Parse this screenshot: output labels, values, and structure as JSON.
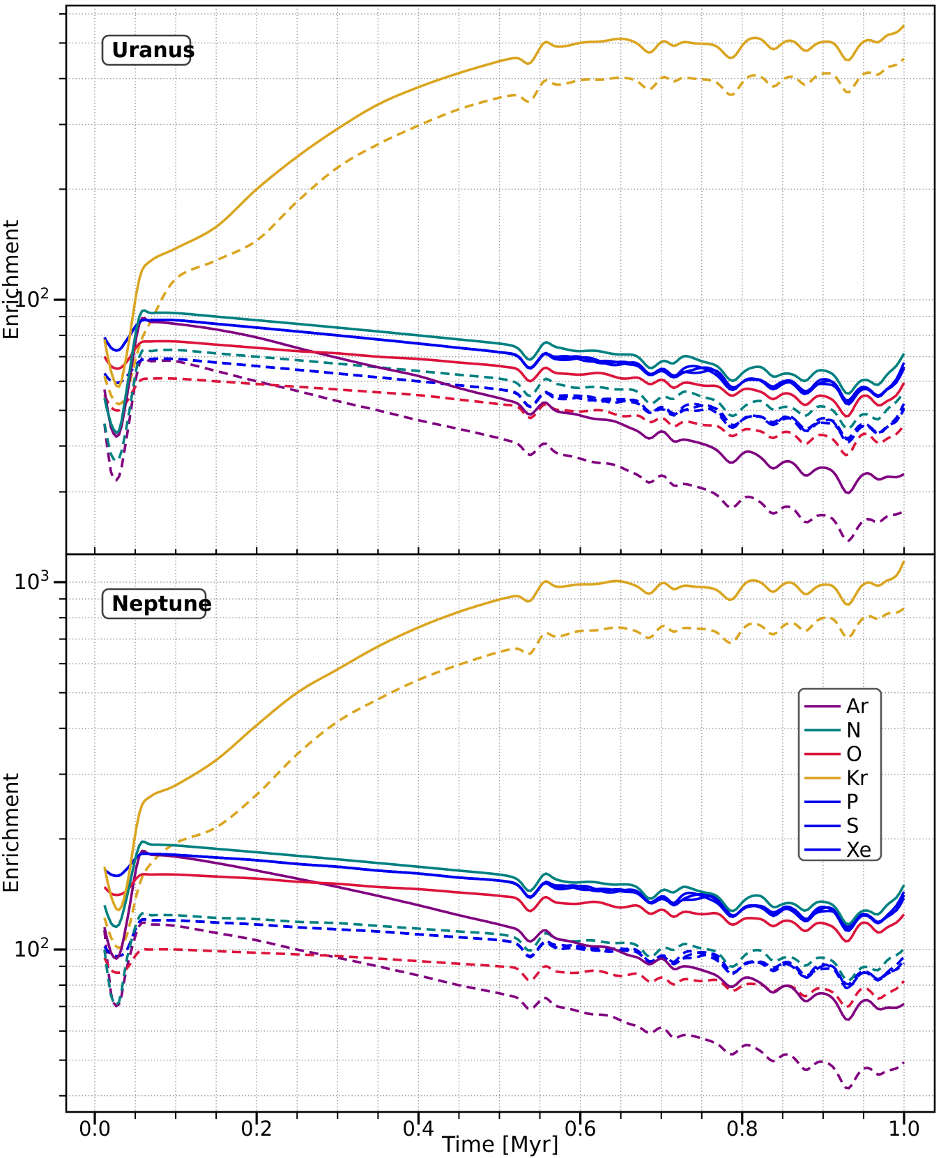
{
  "figure": {
    "background": "#ffffff",
    "grid_color": "#9a9a9a",
    "frame_color": "#000000",
    "x_axis": {
      "label": "Time [Myr]",
      "ticks": [
        {
          "value": 0.0,
          "label": "0.0"
        },
        {
          "value": 0.2,
          "label": "0.2"
        },
        {
          "value": 0.4,
          "label": "0.4"
        },
        {
          "value": 0.6,
          "label": "0.6"
        },
        {
          "value": 0.8,
          "label": "0.8"
        },
        {
          "value": 1.0,
          "label": "1.0"
        }
      ],
      "minor_step": 0.05
    },
    "panels": [
      {
        "id": "uranus",
        "label": "Uranus",
        "ylabel": "Enrichment",
        "yscale": "log",
        "ylim": [
          20,
          632
        ],
        "major_ticks": [
          {
            "value": 100,
            "base": "10",
            "exp": "2"
          }
        ]
      },
      {
        "id": "neptune",
        "label": "Neptune",
        "ylabel": "Enrichment",
        "yscale": "log",
        "ylim": [
          36,
          1191
        ],
        "major_ticks": [
          {
            "value": 1000,
            "base": "10",
            "exp": "3"
          },
          {
            "value": 100,
            "base": "10",
            "exp": "2"
          }
        ]
      }
    ],
    "legend": {
      "entries": [
        {
          "label": "Ar",
          "color": "#800080"
        },
        {
          "label": "N",
          "color": "#008080"
        },
        {
          "label": "O",
          "color": "#DC143C"
        },
        {
          "label": "Kr",
          "color": "#DAA520"
        },
        {
          "label": "P",
          "color": "#0000EE"
        },
        {
          "label": "S",
          "color": "#0000EE"
        },
        {
          "label": "Xe",
          "color": "#0000EE"
        }
      ]
    }
  },
  "chart_data": [
    {
      "type": "line",
      "title": "Uranus",
      "xlabel": "Time [Myr]",
      "ylabel": "Enrichment",
      "yscale": "log",
      "ylim": [
        20,
        632
      ],
      "xlim": [
        0.0,
        1.0
      ],
      "grid": true,
      "legend_position": "lower-panel-right",
      "x": [
        0.012,
        0.02,
        0.03,
        0.04,
        0.055,
        0.07,
        0.1,
        0.15,
        0.2,
        0.25,
        0.3,
        0.35,
        0.4,
        0.45,
        0.5,
        0.55,
        0.6,
        0.65,
        0.7,
        0.75,
        0.8,
        0.85,
        0.9,
        0.95,
        0.985,
        1.0
      ],
      "series": [
        {
          "name": "Ar",
          "color": "#800080",
          "style": "solid",
          "values": [
            57,
            45,
            43,
            55,
            86,
            87,
            86,
            83,
            79,
            74,
            69.5,
            65.5,
            62,
            57.5,
            54,
            51,
            48.5,
            46,
            43.5,
            41,
            38.5,
            36.5,
            35,
            33.5,
            33,
            34
          ]
        },
        {
          "name": "Ar",
          "color": "#800080",
          "style": "dashed",
          "values": [
            46,
            34,
            33,
            43,
            67,
            68,
            68,
            64,
            60,
            56.5,
            53,
            50,
            47,
            44.5,
            42,
            39.5,
            37,
            35,
            33,
            31,
            29,
            27.5,
            26,
            25,
            26,
            27
          ]
        },
        {
          "name": "N",
          "color": "#008080",
          "style": "solid",
          "values": [
            54,
            46,
            44,
            58,
            90,
            92,
            92,
            90,
            88,
            86,
            84,
            82,
            80,
            78,
            76,
            73.5,
            73,
            71,
            70,
            68,
            66,
            64,
            64,
            62,
            63,
            70
          ]
        },
        {
          "name": "N",
          "color": "#008080",
          "style": "dashed",
          "values": [
            46,
            38,
            37,
            46,
            70,
            72.5,
            73,
            71.5,
            70,
            68.5,
            67,
            65.5,
            64,
            62.5,
            61,
            58.5,
            58,
            57,
            56,
            54.5,
            53,
            52,
            51,
            50,
            50.5,
            55
          ]
        },
        {
          "name": "O",
          "color": "#DC143C",
          "style": "solid",
          "values": [
            70,
            66,
            65,
            68,
            76,
            77,
            77,
            75.5,
            74,
            72.5,
            71.5,
            70,
            69,
            67.5,
            66,
            63.5,
            63,
            62,
            61,
            59.5,
            58,
            56,
            55,
            54,
            54.5,
            60
          ]
        },
        {
          "name": "O",
          "color": "#DC143C",
          "style": "dashed",
          "values": [
            55,
            51,
            50,
            53,
            60,
            61,
            61,
            60,
            59,
            58,
            57,
            56,
            55,
            53.5,
            52,
            50.5,
            50,
            49,
            48,
            46.5,
            45,
            44,
            43,
            42.5,
            43,
            46
          ]
        },
        {
          "name": "Kr",
          "color": "#DAA520",
          "style": "solid",
          "values": [
            78,
            64,
            58,
            72,
            114,
            128,
            138,
            158,
            200,
            245,
            292,
            340,
            379,
            414,
            446,
            477,
            500,
            510,
            505,
            500,
            505,
            510,
            505,
            515,
            520,
            560
          ]
        },
        {
          "name": "Kr",
          "color": "#DAA520",
          "style": "dashed",
          "values": [
            62,
            55,
            52,
            56,
            75,
            88,
            114,
            128,
            145,
            185,
            229,
            265,
            298,
            330,
            355,
            375,
            396,
            400,
            403,
            400,
            400,
            405,
            414,
            420,
            425,
            455
          ]
        },
        {
          "name": "P",
          "color": "#0000EE",
          "style": "solid",
          "values": [
            79,
            74,
            73,
            78,
            87,
            88,
            88,
            86,
            84,
            82,
            80,
            78,
            76,
            74,
            72,
            69.5,
            69,
            67,
            66,
            64,
            62,
            60,
            60,
            58,
            59,
            66
          ]
        },
        {
          "name": "P",
          "color": "#0000EE",
          "style": "dashed",
          "values": [
            63,
            60,
            59.5,
            62,
            68,
            69,
            69,
            67.5,
            66,
            64.5,
            63,
            61.5,
            60,
            58.5,
            57,
            54.5,
            54,
            53,
            52,
            50.5,
            49,
            48,
            47,
            46,
            46.5,
            51
          ]
        },
        {
          "name": "S",
          "color": "#0000EE",
          "style": "solid",
          "values_same_as": "P"
        },
        {
          "name": "S",
          "color": "#0000EE",
          "style": "dashed",
          "values_same_as": "P"
        },
        {
          "name": "Xe",
          "color": "#0000EE",
          "style": "solid",
          "values_same_as": "P"
        },
        {
          "name": "Xe",
          "color": "#0000EE",
          "style": "dashed",
          "values_same_as": "P"
        }
      ]
    },
    {
      "type": "line",
      "title": "Neptune",
      "xlabel": "Time [Myr]",
      "ylabel": "Enrichment",
      "yscale": "log",
      "ylim": [
        36,
        1191
      ],
      "xlim": [
        0.0,
        1.0
      ],
      "grid": true,
      "x": [
        0.012,
        0.02,
        0.03,
        0.04,
        0.055,
        0.07,
        0.1,
        0.15,
        0.2,
        0.25,
        0.3,
        0.35,
        0.4,
        0.45,
        0.5,
        0.55,
        0.6,
        0.65,
        0.7,
        0.75,
        0.8,
        0.85,
        0.9,
        0.95,
        0.985,
        1.0
      ],
      "series": [
        {
          "name": "Ar",
          "color": "#800080",
          "style": "solid",
          "values": [
            115,
            98,
            96,
            120,
            180,
            181,
            179,
            172,
            164,
            156,
            148,
            140,
            132,
            124,
            117,
            110,
            104,
            99,
            94,
            89,
            84,
            80,
            76,
            72,
            70,
            72
          ]
        },
        {
          "name": "Ar",
          "color": "#800080",
          "style": "dashed",
          "values": [
            113,
            76,
            71,
            90,
            116,
            117,
            116,
            111,
            106,
            100,
            95,
            90,
            85,
            80,
            76,
            72,
            68,
            64.5,
            61,
            58,
            55,
            52,
            49.5,
            47,
            47.5,
            50
          ]
        },
        {
          "name": "N",
          "color": "#008080",
          "style": "solid",
          "values": [
            132,
            118,
            117,
            140,
            192,
            193,
            192,
            188,
            184,
            180,
            176,
            172,
            168,
            164,
            160,
            154,
            153,
            150,
            148,
            144,
            140,
            136,
            135,
            131,
            132,
            148
          ]
        },
        {
          "name": "N",
          "color": "#008080",
          "style": "dashed",
          "values": [
            100,
            75,
            72,
            95,
            123,
            124,
            124,
            122,
            121,
            119,
            118,
            116,
            114,
            112,
            110,
            106,
            106,
            104,
            103,
            101,
            99,
            97,
            95,
            92,
            93,
            99
          ]
        },
        {
          "name": "O",
          "color": "#DC143C",
          "style": "solid",
          "values": [
            148,
            142,
            141,
            145,
            159,
            160,
            160,
            158,
            156,
            153,
            151,
            148,
            146,
            143,
            140,
            135,
            134,
            132,
            130,
            127,
            124,
            121,
            119,
            117,
            118,
            126
          ]
        },
        {
          "name": "O",
          "color": "#DC143C",
          "style": "dashed",
          "values": [
            95,
            88,
            86.5,
            89,
            99,
            100,
            100,
            99,
            98,
            97,
            96,
            94.5,
            93,
            91.5,
            90,
            87.5,
            87,
            86,
            85,
            83.5,
            82,
            80.5,
            79,
            77.5,
            78,
            83
          ]
        },
        {
          "name": "Kr",
          "color": "#DAA520",
          "style": "solid",
          "values": [
            168,
            140,
            128,
            150,
            235,
            262,
            280,
            328,
            408,
            500,
            579,
            668,
            753,
            830,
            897,
            958,
            986,
            1000,
            990,
            975,
            990,
            1000,
            985,
            1000,
            1010,
            1150
          ]
        },
        {
          "name": "Kr",
          "color": "#DAA520",
          "style": "dashed",
          "values": [
            122,
            108,
            101,
            110,
            150,
            172,
            195,
            215,
            264,
            340,
            417,
            480,
            542,
            596,
            646,
            690,
            736,
            748,
            755,
            750,
            755,
            770,
            800,
            810,
            815,
            855
          ]
        },
        {
          "name": "P",
          "color": "#0000EE",
          "style": "solid",
          "values": [
            165,
            160,
            159,
            166,
            181,
            182,
            181,
            178,
            175,
            171,
            168,
            164,
            161,
            157,
            154,
            148,
            147,
            144,
            142,
            138,
            134,
            130,
            129,
            126,
            127,
            140
          ]
        },
        {
          "name": "P",
          "color": "#0000EE",
          "style": "dashed",
          "values": [
            102,
            97,
            96,
            100,
            119,
            120,
            120,
            118.5,
            117,
            115,
            113.5,
            112,
            110,
            108,
            106,
            102,
            101,
            99.5,
            98,
            96,
            94,
            92,
            90,
            88,
            88.5,
            93
          ]
        },
        {
          "name": "S",
          "color": "#0000EE",
          "style": "solid",
          "values_same_as": "P"
        },
        {
          "name": "S",
          "color": "#0000EE",
          "style": "dashed",
          "values_same_as": "P"
        },
        {
          "name": "Xe",
          "color": "#0000EE",
          "style": "solid",
          "values_same_as": "P"
        },
        {
          "name": "Xe",
          "color": "#0000EE",
          "style": "dashed",
          "values_same_as": "P"
        }
      ]
    }
  ]
}
